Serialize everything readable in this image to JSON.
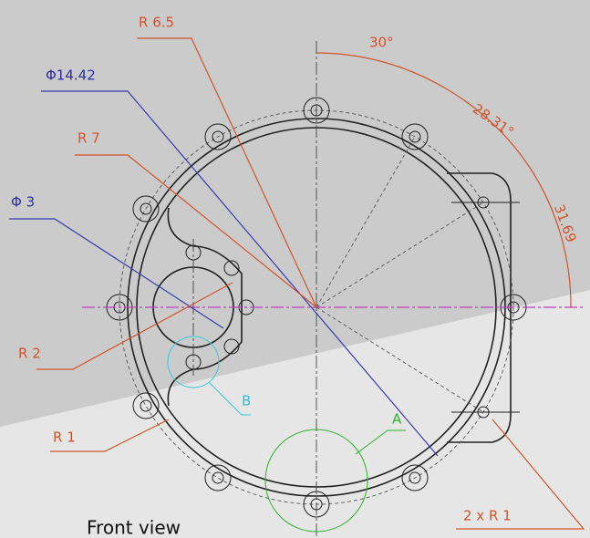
{
  "labels": {
    "r65": "R 6.5",
    "phi1442": "Φ14.42",
    "ang30": "30°",
    "ang2831": "28.31°",
    "r7": "R 7",
    "phi3": "Φ 3",
    "d3169": "31.69",
    "r2": "R 2",
    "b": "B",
    "a": "A",
    "r1": "R 1",
    "r1x2": "2 x R 1"
  },
  "caption": "Front view"
}
